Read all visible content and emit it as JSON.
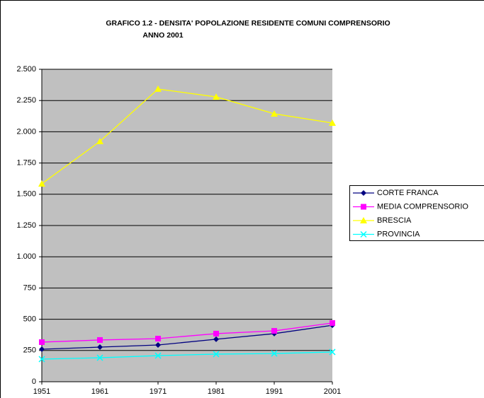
{
  "chart_data": {
    "type": "line",
    "title": "GRAFICO 1.2 - DENSITA' POPOLAZIONE RESIDENTE COMUNI COMPRENSORIO",
    "subtitle": "ANNO 2001",
    "x": [
      1951,
      1961,
      1971,
      1981,
      1991,
      2001
    ],
    "xlim": [
      1951,
      2001
    ],
    "xticks": [
      1951,
      1961,
      1971,
      1981,
      1991,
      2001
    ],
    "ylim": [
      0,
      2500
    ],
    "yticks": [
      0,
      250,
      500,
      750,
      {
        "value": 1000,
        "label": "1.000"
      },
      {
        "value": 1250,
        "label": "1.250"
      },
      {
        "value": 1500,
        "label": "1.500"
      },
      {
        "value": 1750,
        "label": "1.750"
      },
      {
        "value": 2000,
        "label": "2.000"
      },
      {
        "value": 2250,
        "label": "2.250"
      },
      {
        "value": 2500,
        "label": "2.500"
      }
    ],
    "grid": true,
    "legend": "right",
    "series": [
      {
        "name": "CORTE FRANCA",
        "color": "#000080",
        "marker": "diamond",
        "values": [
          260,
          277,
          294,
          340,
          385,
          452
        ]
      },
      {
        "name": "MEDIA COMPRENSORIO",
        "color": "#ff00ff",
        "marker": "square",
        "values": [
          317,
          334,
          345,
          385,
          407,
          470
        ]
      },
      {
        "name": "BRESCIA",
        "color": "#ffff00",
        "marker": "triangle",
        "values": [
          1584,
          1923,
          2342,
          2279,
          2144,
          2070
        ]
      },
      {
        "name": "PROVINCIA",
        "color": "#00ffff",
        "marker": "x",
        "values": [
          181,
          192,
          209,
          221,
          226,
          238
        ]
      }
    ]
  }
}
